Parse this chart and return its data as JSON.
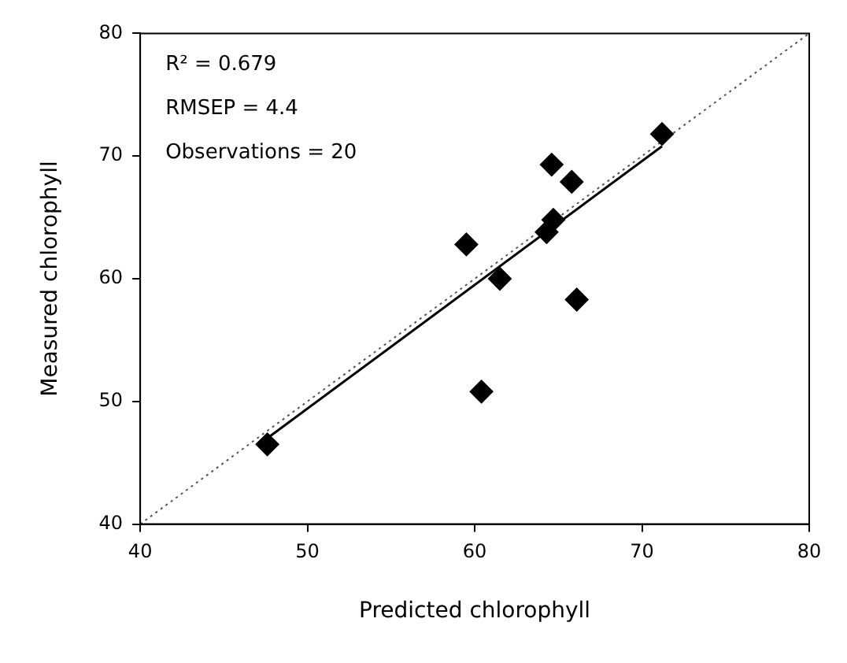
{
  "chart_data": {
    "type": "scatter",
    "xlabel": "Predicted chlorophyll",
    "ylabel": "Measured chlorophyll",
    "xlim": [
      40,
      80
    ],
    "xticks": [
      40,
      50,
      60,
      70,
      80
    ],
    "ylim": [
      40,
      80
    ],
    "yticks": [
      40,
      50,
      60,
      70,
      80
    ],
    "grid": false,
    "legend": false,
    "annotations": [
      "R² = 0.679",
      "RMSEP = 4.4",
      "Observations = 20"
    ],
    "series": [
      {
        "color": "#000000",
        "marker": "diamond",
        "x": [
          47.6,
          59.5,
          60.4,
          61.5,
          64.3,
          64.7,
          64.6,
          65.8,
          66.1,
          71.2
        ],
        "values": [
          46.5,
          62.8,
          50.8,
          60.0,
          63.8,
          64.8,
          69.3,
          67.9,
          58.3,
          71.8
        ]
      },
      {
        "type": "line",
        "color": "#000000",
        "line_style": "solid",
        "marker": "none",
        "x": [
          47.6,
          71.2
        ],
        "values": [
          47.0,
          70.8
        ]
      },
      {
        "type": "line",
        "color": "#555555",
        "line_style": "dotted",
        "marker": "none",
        "x": [
          40,
          80
        ],
        "values": [
          40,
          80
        ]
      }
    ]
  }
}
